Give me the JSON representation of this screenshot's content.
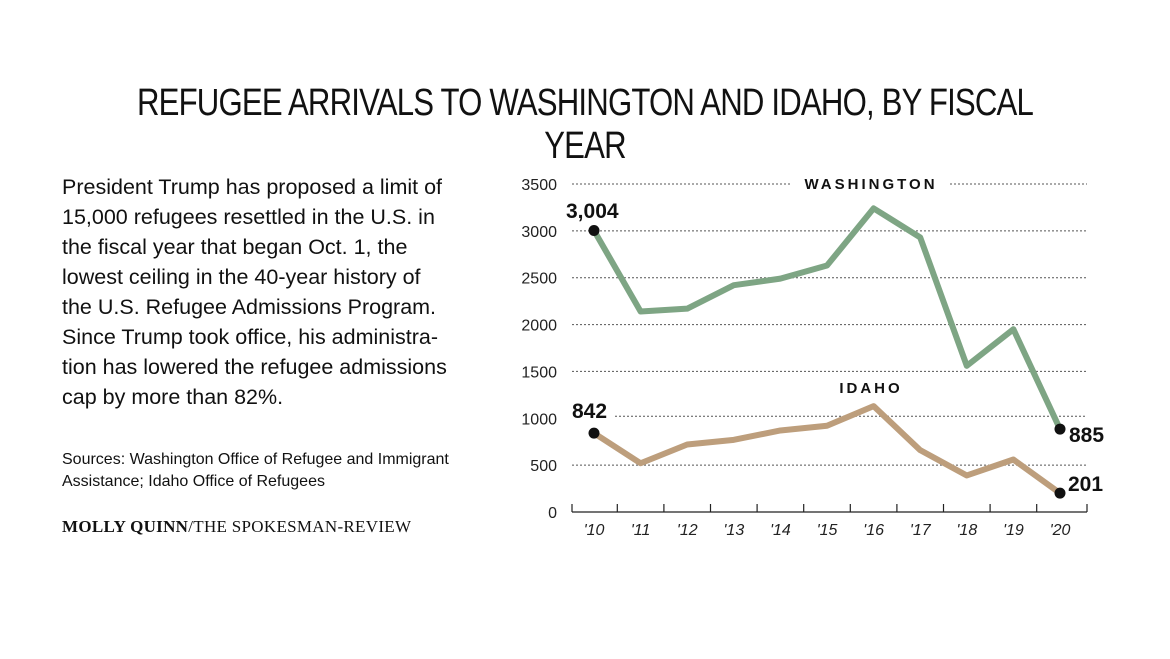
{
  "title": "REFUGEE ARRIVALS TO WASHINGTON AND IDAHO, BY FISCAL YEAR",
  "blurb": [
    "President Trump has proposed a limit of",
    "15,000 refugees resettled in the U.S. in",
    "the fiscal year that began Oct. 1, the",
    "lowest ceiling in the 40-year history of",
    "the U.S. Refugee Admissions Program.",
    "Since Trump took office, his administra-",
    "tion has lowered the refugee admissions",
    "cap by more than 82%."
  ],
  "sources": [
    "Sources: Washington Office of Refugee and Immigrant",
    "Assistance; Idaho Office of Refugees"
  ],
  "credit": {
    "author": "MOLLY QUINN",
    "outlet": "/THE SPOKESMAN-REVIEW"
  },
  "colors": {
    "washington": "#7ea584",
    "idaho": "#bd9e7c",
    "grid": "#555555",
    "marker": "#111111"
  },
  "chart_data": {
    "type": "line",
    "categories": [
      "'10",
      "'11",
      "'12",
      "'13",
      "'14",
      "'15",
      "'16",
      "'17",
      "'18",
      "'19",
      "'20"
    ],
    "ylim": [
      0,
      3500
    ],
    "yticks": [
      "0",
      "500",
      "1000",
      "1500",
      "2000",
      "2500",
      "3000",
      "3500"
    ],
    "grid": "dotted horizontal",
    "series": [
      {
        "name": "WASHINGTON",
        "values": [
          3004,
          2140,
          2170,
          2420,
          2490,
          2630,
          3240,
          2930,
          1560,
          1950,
          885
        ],
        "start_label": "3,004",
        "end_label": "885"
      },
      {
        "name": "IDAHO",
        "values": [
          842,
          520,
          720,
          770,
          870,
          920,
          1130,
          660,
          390,
          560,
          201
        ],
        "start_label": "842",
        "end_label": "201"
      }
    ]
  }
}
